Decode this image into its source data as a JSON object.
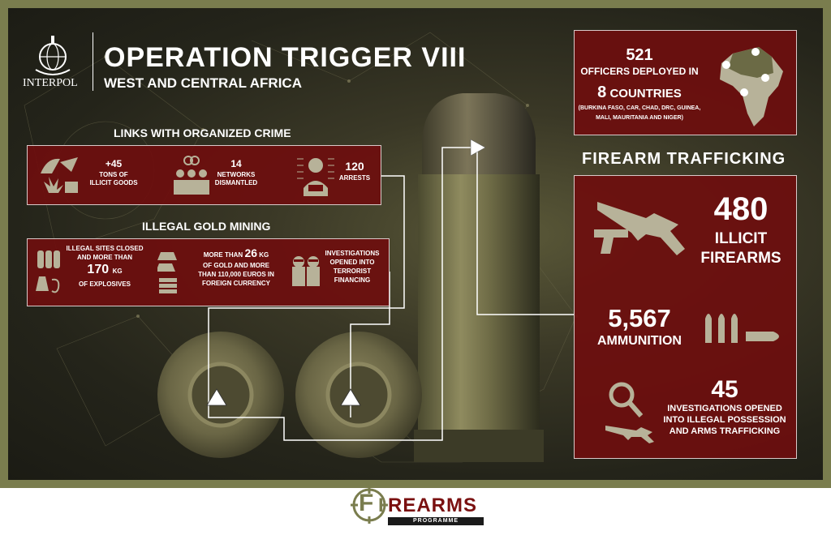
{
  "header": {
    "org": "INTERPOL",
    "title": "OPERATION TRIGGER VIII",
    "subtitle": "WEST AND CENTRAL AFRICA"
  },
  "officers": {
    "count": "521",
    "label": "OFFICERS DEPLOYED IN",
    "countries_num": "8",
    "countries_word": "COUNTRIES",
    "countries_list_1": "(BURKINA FASO, CAR, CHAD, DRC, GUINEA,",
    "countries_list_2": "MALI, MAURITANIA AND NIGER)"
  },
  "organized_crime": {
    "heading": "LINKS WITH ORGANIZED CRIME",
    "goods_value": "+45",
    "goods_l1": "TONS OF",
    "goods_l2": "ILLICIT GOODS",
    "networks_value": "14",
    "networks_l1": "NETWORKS",
    "networks_l2": "DISMANTLED",
    "arrests_value": "120",
    "arrests_label": "ARRESTS"
  },
  "gold_mining": {
    "heading": "ILLEGAL GOLD MINING",
    "sites_l1": "ILLEGAL SITES CLOSED",
    "sites_l2": "AND MORE THAN",
    "sites_value": "170",
    "sites_unit": "KG",
    "sites_l4": "OF EXPLOSIVES",
    "gold_pre": "MORE THAN",
    "gold_value": "26",
    "gold_unit": "KG",
    "gold_l2": "OF GOLD AND MORE",
    "gold_l3": "THAN 110,000 EUROS IN",
    "gold_l4": "FOREIGN CURRENCY",
    "inv_l1": "INVESTIGATIONS",
    "inv_l2": "OPENED INTO",
    "inv_l3": "TERRORIST",
    "inv_l4": "FINANCING"
  },
  "trafficking": {
    "heading": "FIREARM TRAFFICKING",
    "firearms_value": "480",
    "firearms_l1": "ILLICIT",
    "firearms_l2": "FIREARMS",
    "ammo_value": "5,567",
    "ammo_label": "AMMUNITION",
    "inv_value": "45",
    "inv_l1": "INVESTIGATIONS OPENED",
    "inv_l2": "INTO ILLEGAL POSSESSION",
    "inv_l3": "AND ARMS TRAFFICKING"
  },
  "footer": {
    "logo_f": "F",
    "logo_i": "I",
    "logo_rest": "REARMS",
    "programme": "PROGRAMME"
  },
  "colors": {
    "panel_red": "#6e0e0e",
    "olive_border": "#7a7d4e",
    "icon_beige": "#b7b299"
  }
}
